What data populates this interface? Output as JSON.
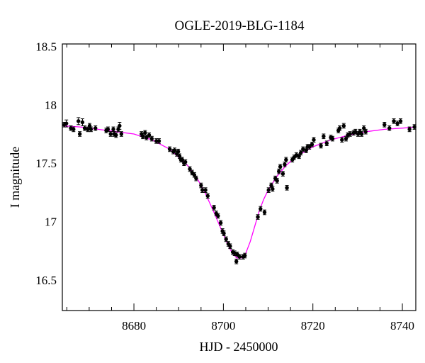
{
  "chart_data": {
    "type": "scatter",
    "title": "OGLE-2019-BLG-1184",
    "xlabel": "HJD - 2450000",
    "ylabel": "I magnitude",
    "xlim": [
      8664,
      8743
    ],
    "ylim": [
      18.52,
      16.24
    ],
    "y_inverted": true,
    "xticks": [
      8680,
      8700,
      8720,
      8740
    ],
    "yticks": [
      16.5,
      17,
      17.5,
      18,
      18.5
    ],
    "ytick_labels": [
      "16.5",
      "17",
      "17.5",
      "18",
      "18.5"
    ],
    "series": [
      {
        "type": "points_with_errorbars",
        "color": "#000000",
        "points": [
          [
            8664.4,
            17.83,
            0.02
          ],
          [
            8664.9,
            17.84,
            0.03
          ],
          [
            8665.9,
            17.8,
            0.02
          ],
          [
            8666.5,
            17.79,
            0.02
          ],
          [
            8667.6,
            17.86,
            0.03
          ],
          [
            8667.9,
            17.75,
            0.02
          ],
          [
            8668.5,
            17.85,
            0.03
          ],
          [
            8669.0,
            17.8,
            0.02
          ],
          [
            8669.7,
            17.79,
            0.02
          ],
          [
            8670.1,
            17.82,
            0.02
          ],
          [
            8670.4,
            17.79,
            0.02
          ],
          [
            8671.4,
            17.8,
            0.02
          ],
          [
            8673.8,
            17.78,
            0.02
          ],
          [
            8674.2,
            17.79,
            0.02
          ],
          [
            8674.8,
            17.75,
            0.02
          ],
          [
            8675.4,
            17.79,
            0.02
          ],
          [
            8675.6,
            17.75,
            0.02
          ],
          [
            8676.0,
            17.74,
            0.02
          ],
          [
            8676.5,
            17.79,
            0.02
          ],
          [
            8676.8,
            17.82,
            0.03
          ],
          [
            8677.2,
            17.75,
            0.02
          ],
          [
            8681.7,
            17.75,
            0.02
          ],
          [
            8682.0,
            17.73,
            0.02
          ],
          [
            8682.5,
            17.76,
            0.02
          ],
          [
            8682.8,
            17.72,
            0.02
          ],
          [
            8683.4,
            17.74,
            0.02
          ],
          [
            8684.0,
            17.71,
            0.02
          ],
          [
            8685.0,
            17.69,
            0.02
          ],
          [
            8685.6,
            17.69,
            0.02
          ],
          [
            8688.0,
            17.62,
            0.02
          ],
          [
            8688.8,
            17.6,
            0.02
          ],
          [
            8689.1,
            17.61,
            0.02
          ],
          [
            8689.6,
            17.58,
            0.02
          ],
          [
            8689.9,
            17.6,
            0.02
          ],
          [
            8690.2,
            17.56,
            0.02
          ],
          [
            8690.5,
            17.53,
            0.02
          ],
          [
            8690.8,
            17.53,
            0.02
          ],
          [
            8691.2,
            17.5,
            0.02
          ],
          [
            8691.5,
            17.51,
            0.02
          ],
          [
            8692.5,
            17.45,
            0.02
          ],
          [
            8693.0,
            17.42,
            0.02
          ],
          [
            8693.5,
            17.4,
            0.02
          ],
          [
            8693.9,
            17.37,
            0.02
          ],
          [
            8695.0,
            17.31,
            0.02
          ],
          [
            8695.3,
            17.27,
            0.02
          ],
          [
            8696.0,
            17.27,
            0.02
          ],
          [
            8696.5,
            17.22,
            0.02
          ],
          [
            8697.9,
            17.12,
            0.02
          ],
          [
            8698.4,
            17.07,
            0.02
          ],
          [
            8698.8,
            17.05,
            0.02
          ],
          [
            8699.4,
            16.99,
            0.02
          ],
          [
            8699.8,
            16.92,
            0.02
          ],
          [
            8700.1,
            16.9,
            0.02
          ],
          [
            8700.6,
            16.85,
            0.02
          ],
          [
            8701.1,
            16.81,
            0.02
          ],
          [
            8701.5,
            16.79,
            0.02
          ],
          [
            8702.1,
            16.74,
            0.02
          ],
          [
            8702.5,
            16.73,
            0.02
          ],
          [
            8702.9,
            16.66,
            0.02
          ],
          [
            8703.1,
            16.72,
            0.02
          ],
          [
            8703.6,
            16.7,
            0.02
          ],
          [
            8704.4,
            16.7,
            0.02
          ],
          [
            8704.8,
            16.71,
            0.02
          ],
          [
            8707.7,
            17.04,
            0.02
          ],
          [
            8708.3,
            17.11,
            0.02
          ],
          [
            8709.2,
            17.08,
            0.02
          ],
          [
            8710.1,
            17.27,
            0.02
          ],
          [
            8710.7,
            17.31,
            0.02
          ],
          [
            8711.0,
            17.28,
            0.02
          ],
          [
            8711.6,
            17.37,
            0.02
          ],
          [
            8712.0,
            17.35,
            0.02
          ],
          [
            8712.4,
            17.43,
            0.02
          ],
          [
            8712.7,
            17.47,
            0.02
          ],
          [
            8713.3,
            17.41,
            0.02
          ],
          [
            8713.7,
            17.49,
            0.02
          ],
          [
            8714.0,
            17.53,
            0.02
          ],
          [
            8714.2,
            17.29,
            0.02
          ],
          [
            8715.4,
            17.53,
            0.02
          ],
          [
            8715.8,
            17.55,
            0.02
          ],
          [
            8716.3,
            17.57,
            0.02
          ],
          [
            8716.9,
            17.56,
            0.02
          ],
          [
            8717.3,
            17.59,
            0.02
          ],
          [
            8717.8,
            17.62,
            0.02
          ],
          [
            8718.5,
            17.61,
            0.02
          ],
          [
            8718.8,
            17.64,
            0.02
          ],
          [
            8719.2,
            17.64,
            0.02
          ],
          [
            8719.8,
            17.66,
            0.02
          ],
          [
            8720.2,
            17.7,
            0.02
          ],
          [
            8721.8,
            17.65,
            0.02
          ],
          [
            8722.4,
            17.73,
            0.02
          ],
          [
            8723.1,
            17.67,
            0.02
          ],
          [
            8724.0,
            17.72,
            0.02
          ],
          [
            8724.4,
            17.71,
            0.02
          ],
          [
            8725.7,
            17.78,
            0.02
          ],
          [
            8726.0,
            17.8,
            0.02
          ],
          [
            8726.5,
            17.7,
            0.02
          ],
          [
            8726.9,
            17.82,
            0.02
          ],
          [
            8727.4,
            17.71,
            0.02
          ],
          [
            8727.8,
            17.74,
            0.02
          ],
          [
            8728.3,
            17.75,
            0.02
          ],
          [
            8729.1,
            17.76,
            0.02
          ],
          [
            8729.5,
            17.77,
            0.02
          ],
          [
            8730.1,
            17.75,
            0.02
          ],
          [
            8730.5,
            17.77,
            0.02
          ],
          [
            8730.9,
            17.75,
            0.02
          ],
          [
            8731.4,
            17.8,
            0.02
          ],
          [
            8731.8,
            17.77,
            0.02
          ],
          [
            8736.0,
            17.83,
            0.02
          ],
          [
            8737.1,
            17.8,
            0.02
          ],
          [
            8738.1,
            17.86,
            0.02
          ],
          [
            8738.9,
            17.84,
            0.02
          ],
          [
            8739.6,
            17.86,
            0.02
          ],
          [
            8741.6,
            17.79,
            0.02
          ],
          [
            8742.7,
            17.81,
            0.02
          ]
        ]
      },
      {
        "type": "model_curve",
        "color": "#ff00ff",
        "points": [
          [
            8664,
            17.82
          ],
          [
            8668,
            17.81
          ],
          [
            8672,
            17.79
          ],
          [
            8676,
            17.77
          ],
          [
            8680,
            17.75
          ],
          [
            8684,
            17.7
          ],
          [
            8688,
            17.62
          ],
          [
            8692,
            17.48
          ],
          [
            8694,
            17.38
          ],
          [
            8696,
            17.24
          ],
          [
            8698,
            17.07
          ],
          [
            8700,
            16.89
          ],
          [
            8701,
            16.8
          ],
          [
            8702,
            16.73
          ],
          [
            8703,
            16.69
          ],
          [
            8704,
            16.69
          ],
          [
            8705,
            16.73
          ],
          [
            8706,
            16.83
          ],
          [
            8707,
            16.96
          ],
          [
            8708,
            17.09
          ],
          [
            8709,
            17.19
          ],
          [
            8710,
            17.27
          ],
          [
            8712,
            17.39
          ],
          [
            8714,
            17.48
          ],
          [
            8716,
            17.55
          ],
          [
            8720,
            17.64
          ],
          [
            8724,
            17.7
          ],
          [
            8728,
            17.74
          ],
          [
            8732,
            17.77
          ],
          [
            8736,
            17.79
          ],
          [
            8740,
            17.8
          ],
          [
            8743,
            17.81
          ]
        ]
      }
    ],
    "grid": false
  }
}
